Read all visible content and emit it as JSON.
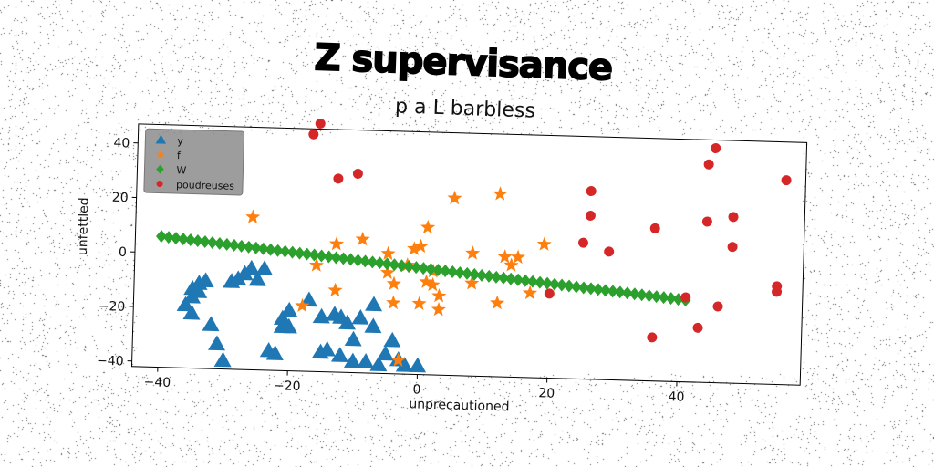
{
  "chart_data": {
    "type": "scatter",
    "title": "Z supervisance",
    "subtitle": "p a L barbless",
    "xlabel": "unprecautioned",
    "ylabel": "unfettled",
    "xlim": [
      -44,
      59
    ],
    "ylim": [
      -42,
      47
    ],
    "xticks": [
      -40,
      -20,
      0,
      20,
      40
    ],
    "xtick_labels": [
      "−40",
      "−20",
      "0",
      "20",
      "40"
    ],
    "yticks": [
      -40,
      -20,
      0,
      20,
      40
    ],
    "ytick_labels": [
      "−40",
      "−20",
      "0",
      "20",
      "40"
    ],
    "grid": false,
    "legend_position": "top-left",
    "series": [
      {
        "name": "y",
        "marker": "triangle",
        "color": "#1f77b4",
        "points": [
          [
            -36,
            -19
          ],
          [
            -35,
            -16
          ],
          [
            -35,
            -13
          ],
          [
            -34,
            -11
          ],
          [
            -34,
            -14
          ],
          [
            -33,
            -10
          ],
          [
            -35,
            -22
          ],
          [
            -32,
            -26
          ],
          [
            -31,
            -33
          ],
          [
            -30,
            -39
          ],
          [
            -29,
            -10
          ],
          [
            -28,
            -9
          ],
          [
            -27,
            -7
          ],
          [
            -26,
            -5
          ],
          [
            -25,
            -9
          ],
          [
            -24,
            -5
          ],
          [
            -23,
            -35
          ],
          [
            -22,
            -36
          ],
          [
            -21,
            -26
          ],
          [
            -21,
            -23
          ],
          [
            -20,
            -20
          ],
          [
            -20,
            -26
          ],
          [
            -17,
            -16
          ],
          [
            -15,
            -35
          ],
          [
            -15,
            -22
          ],
          [
            -14,
            -34
          ],
          [
            -13,
            -21
          ],
          [
            -12,
            -22
          ],
          [
            -12,
            -36
          ],
          [
            -11,
            -24
          ],
          [
            -10,
            -30
          ],
          [
            -10,
            -38
          ],
          [
            -9,
            -22
          ],
          [
            -8,
            -38
          ],
          [
            -7,
            -25
          ],
          [
            -7,
            -17
          ],
          [
            -6,
            -39
          ],
          [
            -5,
            -35
          ],
          [
            -4,
            -30
          ],
          [
            -3,
            -37
          ],
          [
            -2,
            -39
          ],
          [
            0,
            -39
          ]
        ]
      },
      {
        "name": "f",
        "marker": "star",
        "color": "#ff7f0e",
        "points": [
          [
            -26,
            14
          ],
          [
            -18,
            -18
          ],
          [
            -16,
            -3
          ],
          [
            -13,
            -12
          ],
          [
            -13,
            5
          ],
          [
            -9,
            7
          ],
          [
            -5,
            2
          ],
          [
            -5,
            -5
          ],
          [
            -4,
            -9
          ],
          [
            -4,
            -16
          ],
          [
            -3,
            -37
          ],
          [
            -2,
            -2
          ],
          [
            -1,
            4
          ],
          [
            0,
            -16
          ],
          [
            0,
            5
          ],
          [
            1,
            12
          ],
          [
            1,
            -8
          ],
          [
            2,
            -9
          ],
          [
            2,
            -4
          ],
          [
            3,
            -18
          ],
          [
            3,
            -13
          ],
          [
            5,
            23
          ],
          [
            8,
            -8
          ],
          [
            8,
            3
          ],
          [
            12,
            25
          ],
          [
            12,
            -15
          ],
          [
            13,
            2
          ],
          [
            14,
            -1
          ],
          [
            15,
            2
          ],
          [
            17,
            -11
          ],
          [
            19,
            7
          ]
        ]
      },
      {
        "name": "W",
        "marker": "diamond",
        "color": "#2ca02c",
        "line": {
          "x0": -40,
          "y0": 6,
          "x1": 41,
          "y1": -12
        }
      },
      {
        "name": "poudreuses",
        "marker": "circle",
        "color": "#d62728",
        "points": [
          [
            -17,
            45
          ],
          [
            -16,
            49
          ],
          [
            -13,
            29
          ],
          [
            -10,
            31
          ],
          [
            20,
            -11
          ],
          [
            25,
            8
          ],
          [
            26,
            18
          ],
          [
            26,
            27
          ],
          [
            29,
            5
          ],
          [
            36,
            -26
          ],
          [
            36,
            14
          ],
          [
            41,
            -11
          ],
          [
            43,
            -22
          ],
          [
            44,
            38
          ],
          [
            44,
            17
          ],
          [
            45,
            44
          ],
          [
            46,
            -14
          ],
          [
            48,
            19
          ],
          [
            48,
            8
          ],
          [
            55,
            -8
          ],
          [
            55,
            -6
          ],
          [
            56,
            33
          ]
        ]
      }
    ]
  }
}
